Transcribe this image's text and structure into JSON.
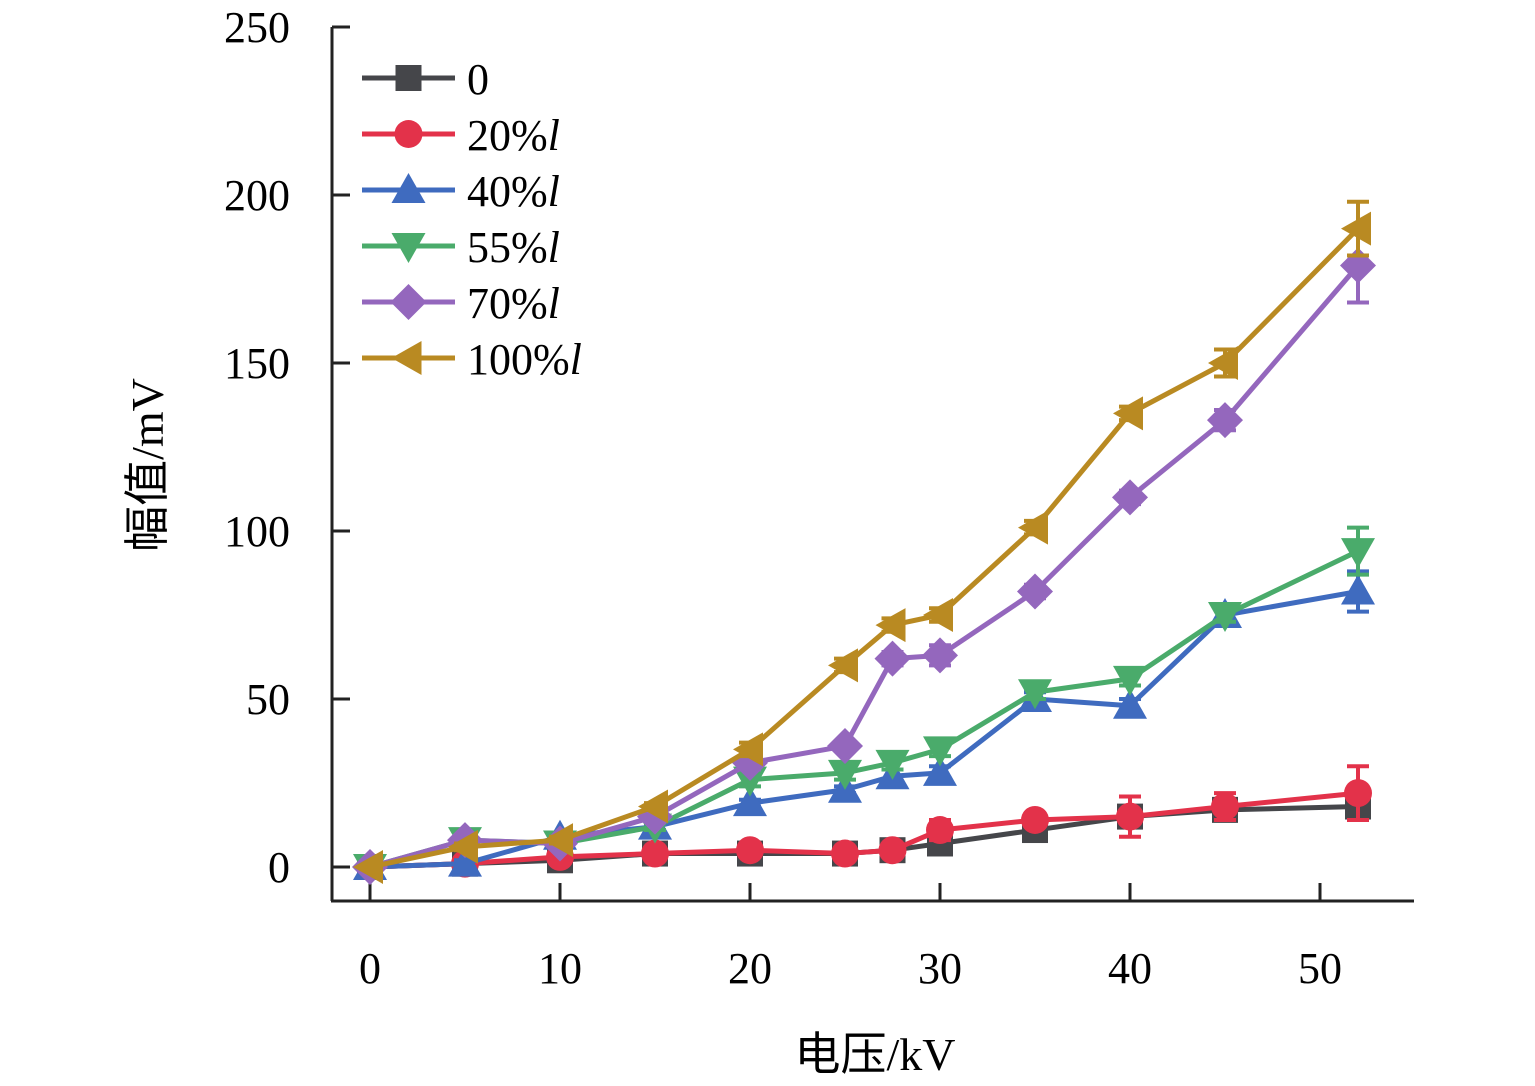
{
  "chart_data": {
    "type": "line",
    "title": "",
    "xlabel": "电压/kV",
    "ylabel": "幅值/mV",
    "xlim": [
      -2,
      55
    ],
    "ylim": [
      -10,
      250
    ],
    "xticks": [
      0,
      10,
      20,
      30,
      40,
      50
    ],
    "yticks": [
      0,
      50,
      100,
      150,
      200,
      250
    ],
    "grid": false,
    "legend_position": "top-left",
    "x": [
      0,
      5,
      10,
      15,
      20,
      25,
      27.5,
      30,
      35,
      40,
      45,
      52
    ],
    "series": [
      {
        "name": "0",
        "suffix": "",
        "marker": "square",
        "color": "#45464a",
        "values": [
          0,
          1,
          2,
          4,
          4,
          4,
          5,
          7,
          11,
          15,
          17,
          18
        ],
        "errors": [
          0,
          1,
          1,
          1,
          1,
          1,
          1,
          1,
          1,
          2,
          2,
          3
        ]
      },
      {
        "name": "20%",
        "suffix": "l",
        "marker": "circle",
        "color": "#e3324a",
        "values": [
          0,
          1,
          3,
          4,
          5,
          4,
          5,
          11,
          14,
          15,
          18,
          22
        ],
        "errors": [
          0,
          1,
          1,
          1,
          1,
          1,
          1,
          3,
          2,
          6,
          4,
          8
        ]
      },
      {
        "name": "40%",
        "suffix": "l",
        "marker": "triangle-up",
        "color": "#3f6bbf",
        "values": [
          0,
          1,
          9,
          12,
          19,
          23,
          27,
          28,
          50,
          48,
          75,
          82
        ],
        "errors": [
          0,
          1,
          1,
          1,
          1,
          1,
          2,
          2,
          2,
          2,
          2,
          6
        ]
      },
      {
        "name": "55%",
        "suffix": "l",
        "marker": "triangle-down",
        "color": "#4aab6b",
        "values": [
          0,
          8,
          7,
          12,
          26,
          28,
          31,
          35,
          52,
          56,
          75,
          94
        ],
        "errors": [
          0,
          1,
          1,
          1,
          2,
          2,
          2,
          2,
          2,
          2,
          2,
          7
        ]
      },
      {
        "name": "70%",
        "suffix": "l",
        "marker": "diamond",
        "color": "#9467bd",
        "values": [
          0,
          8,
          7,
          15,
          31,
          36,
          62,
          63,
          82,
          110,
          133,
          179
        ],
        "errors": [
          0,
          1,
          1,
          1,
          2,
          1,
          2,
          3,
          2,
          2,
          3,
          11
        ]
      },
      {
        "name": "100%",
        "suffix": "l",
        "marker": "triangle-left",
        "color": "#b98a22",
        "values": [
          0,
          6,
          8,
          18,
          35,
          60,
          72,
          75,
          101,
          135,
          150,
          190
        ],
        "errors": [
          0,
          1,
          1,
          1,
          2,
          2,
          2,
          2,
          2,
          2,
          4,
          8
        ]
      }
    ]
  }
}
